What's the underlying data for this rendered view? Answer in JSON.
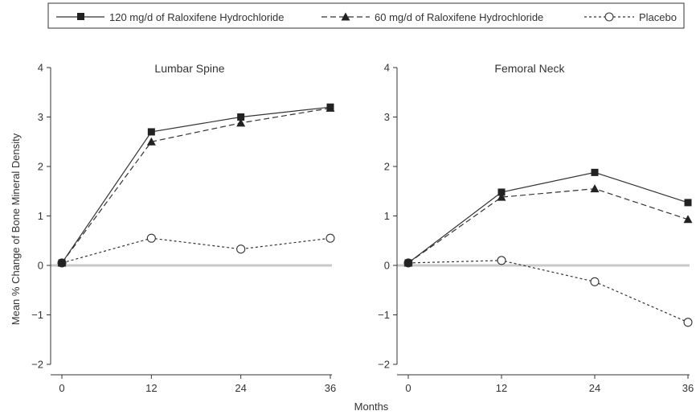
{
  "chart_data": {
    "type": "line",
    "ylabel": "Mean % Change of Bone Mineral Density",
    "xlabel": "Months",
    "x": [
      0,
      12,
      24,
      36
    ],
    "xticks": [
      "0",
      "12",
      "24",
      "36"
    ],
    "ylim": [
      -2,
      4
    ],
    "yticks": [
      "−2",
      "−1",
      "0",
      "1",
      "2",
      "3",
      "4"
    ],
    "legend_position": "top",
    "zero_line_color": "#c8c8c8",
    "line_color": "#333333",
    "legend": [
      {
        "name": "120 mg/d of Raloxifene Hydrochloride",
        "marker": "square",
        "style": "solid"
      },
      {
        "name": "60 mg/d of Raloxifene Hydrochloride",
        "marker": "triangle",
        "style": "dashed"
      },
      {
        "name": "Placebo",
        "marker": "circle",
        "style": "dotted"
      }
    ],
    "panels": [
      {
        "title": "Lumbar Spine",
        "series": [
          {
            "name": "120 mg/d of Raloxifene Hydrochloride",
            "values": [
              0.05,
              2.7,
              3.0,
              3.2
            ]
          },
          {
            "name": "60 mg/d of Raloxifene Hydrochloride",
            "values": [
              0.05,
              2.5,
              2.88,
              3.18
            ]
          },
          {
            "name": "Placebo",
            "values": [
              0.05,
              0.55,
              0.33,
              0.55
            ]
          }
        ]
      },
      {
        "title": "Femoral Neck",
        "series": [
          {
            "name": "120 mg/d of Raloxifene Hydrochloride",
            "values": [
              0.05,
              1.48,
              1.88,
              1.27
            ]
          },
          {
            "name": "60 mg/d of Raloxifene Hydrochloride",
            "values": [
              0.05,
              1.38,
              1.55,
              0.93
            ]
          },
          {
            "name": "Placebo",
            "values": [
              0.05,
              0.1,
              -0.33,
              -1.15
            ]
          }
        ]
      }
    ]
  }
}
